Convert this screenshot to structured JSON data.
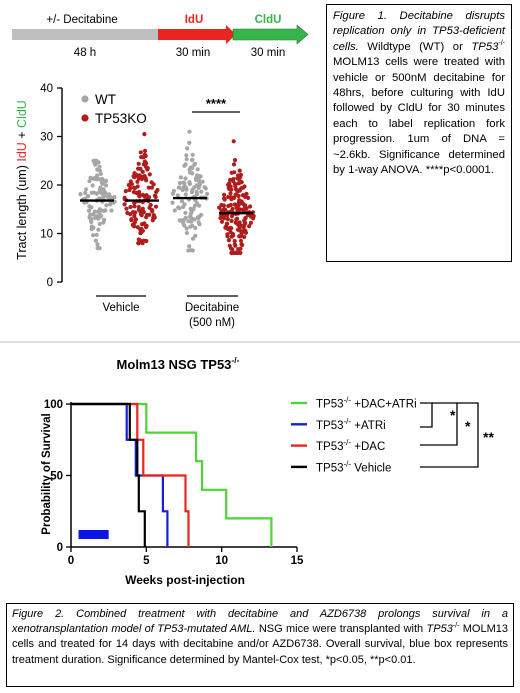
{
  "timeline": {
    "step1_label": "+/- Decitabine",
    "step1_duration": "48 h",
    "step2_label": "IdU",
    "step2_duration": "30 min",
    "step3_label": "CldU",
    "step3_duration": "30 min",
    "colors": {
      "grey": "#bfbfbf",
      "red": "#e8251f",
      "green": "#38b24a"
    }
  },
  "caption1": {
    "fig_label": "Figure 1.",
    "fig_title": "Decitabine disrupts replication only in TP53-deficient cells.",
    "text_a": "Wildtype (WT) or",
    "gene": "TP53",
    "gene_sup": "-/-",
    "text_b": "MOLM13 cells were treated with vehicle or 500nM decitabine for 48hrs, before culturing with IdU followed by CldU for 30 minutes each to label replication fork progression. 1um of DNA = ~2.6kb. Significance determined by 1-way ANOVA. ****p<0.0001."
  },
  "caption2": {
    "fig_title": "Figure 2. Combined treatment with decitabine and AZD6738 prolongs survival in a xenotransplantation model of TP53-mutated AML.",
    "text_a": "NSG mice were transplanted with",
    "gene": "TP53",
    "gene_sup": "-/-",
    "text_b": "MOLM13 cells and treated for 14 days with decitabine and/or AZD6738. Overall survival, blue box represents treatment duration. Significance determined by Mantel-Cox test, *p<0.05, **p<0.01."
  },
  "chart_data": [
    {
      "type": "scatter",
      "ylabel_prefix": "Tract length (um) ",
      "ylabel_idu": "IdU",
      "ylabel_plus": " + ",
      "ylabel_cldu": "CldU",
      "ylim": [
        0,
        40
      ],
      "yticks": [
        "0",
        "10",
        "20",
        "30",
        "40"
      ],
      "legend": [
        {
          "name": "WT",
          "color": "#a6a6a6"
        },
        {
          "name": "TP53KO",
          "color": "#b01c1c"
        }
      ],
      "legend_placement": "top-left",
      "groups": [
        {
          "name": "WT",
          "condition": "Vehicle",
          "mean": 16.8,
          "min": 7,
          "max": 25,
          "n": 110,
          "color": "#a6a6a6"
        },
        {
          "name": "TP53KO",
          "condition": "Vehicle",
          "mean": 16.8,
          "min": 8,
          "max": 30.5,
          "n": 130,
          "color": "#b01c1c"
        },
        {
          "name": "WT",
          "condition": "Decitabine",
          "mean": 17.3,
          "min": 6.5,
          "max": 31,
          "n": 110,
          "color": "#a6a6a6"
        },
        {
          "name": "TP53KO",
          "condition": "Decitabine",
          "mean": 14.2,
          "min": 6,
          "max": 29,
          "n": 170,
          "color": "#b01c1c"
        }
      ],
      "xgroup_labels": [
        "Vehicle",
        "Decitabine",
        "(500 nM)"
      ],
      "significance": "****"
    },
    {
      "type": "line",
      "title": "Molm13 NSG TP53",
      "title_sup": "-/-",
      "xlabel": "Weeks post-injection",
      "ylabel": "Probability of Survival",
      "xlim": [
        0,
        15
      ],
      "ylim": [
        0,
        100
      ],
      "xticks": [
        "0",
        "5",
        "10",
        "15"
      ],
      "yticks": [
        "0",
        "50",
        "100"
      ],
      "treatment_box": {
        "x_start": 0.5,
        "x_end": 2.5,
        "color": "#0a14e6"
      },
      "series": [
        {
          "name_base": "TP53",
          "name_sup": "-/-",
          "name_suffix": " +DAC+ATRi",
          "color": "#4cd633",
          "steps": [
            [
              0,
              100
            ],
            [
              5,
              100
            ],
            [
              5,
              80
            ],
            [
              8.3,
              80
            ],
            [
              8.3,
              60
            ],
            [
              8.7,
              60
            ],
            [
              8.7,
              40
            ],
            [
              10.3,
              40
            ],
            [
              10.3,
              20
            ],
            [
              13.3,
              20
            ],
            [
              13.3,
              0
            ]
          ]
        },
        {
          "name_base": "TP53",
          "name_sup": "-/-",
          "name_suffix": " +ATRi",
          "color": "#1520d6",
          "steps": [
            [
              0,
              100
            ],
            [
              3.7,
              100
            ],
            [
              3.7,
              75
            ],
            [
              4.3,
              75
            ],
            [
              4.3,
              50
            ],
            [
              6.1,
              50
            ],
            [
              6.1,
              25
            ],
            [
              6.4,
              25
            ],
            [
              6.4,
              0
            ]
          ]
        },
        {
          "name_base": "TP53",
          "name_sup": "-/-",
          "name_suffix": " +DAC",
          "color": "#e8251f",
          "steps": [
            [
              0,
              100
            ],
            [
              4.4,
              100
            ],
            [
              4.4,
              75
            ],
            [
              4.8,
              75
            ],
            [
              4.8,
              50
            ],
            [
              7.6,
              50
            ],
            [
              7.6,
              25
            ],
            [
              7.8,
              25
            ],
            [
              7.8,
              0
            ]
          ]
        },
        {
          "name_base": "TP53",
          "name_sup": "-/-",
          "name_suffix": " Vehicle",
          "color": "#000000",
          "steps": [
            [
              0,
              100
            ],
            [
              3.9,
              100
            ],
            [
              3.9,
              75
            ],
            [
              4.4,
              75
            ],
            [
              4.4,
              50
            ],
            [
              4.5,
              50
            ],
            [
              4.5,
              25
            ],
            [
              4.9,
              25
            ],
            [
              4.9,
              0
            ]
          ]
        }
      ],
      "significance": [
        "*",
        "*",
        "**"
      ]
    }
  ]
}
